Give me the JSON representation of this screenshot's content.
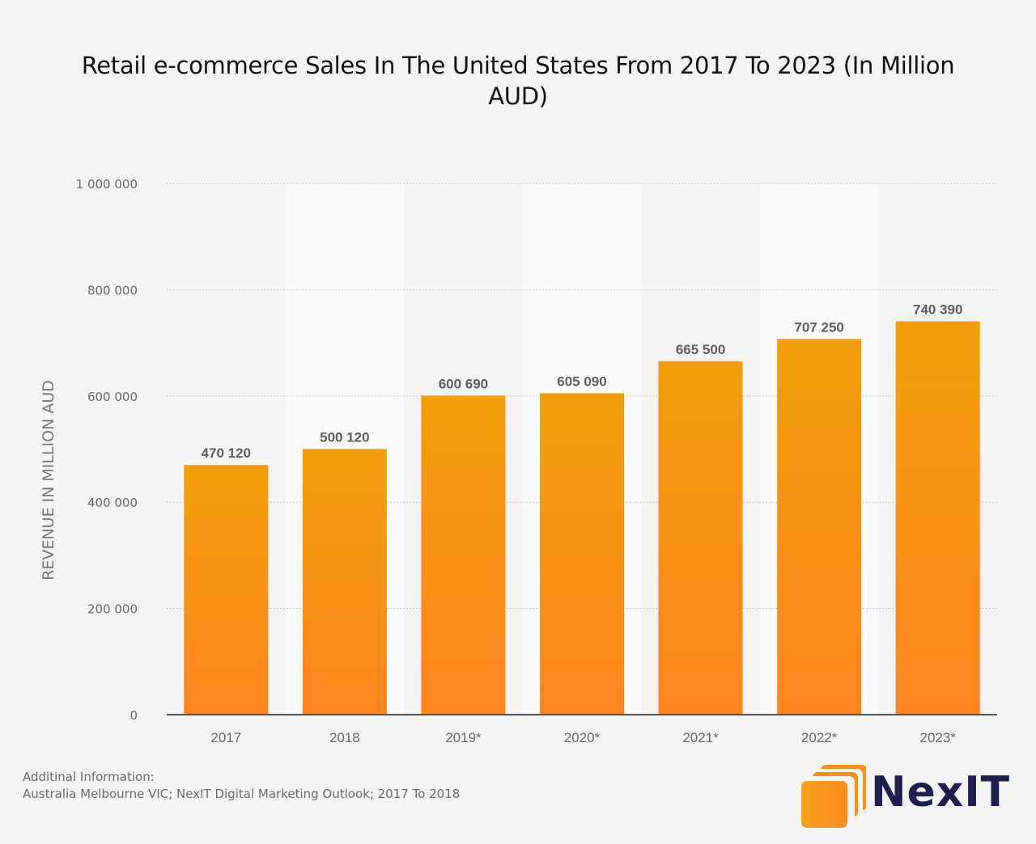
{
  "chart_data": {
    "type": "bar",
    "title": "Retail e-commerce Sales In The United States From 2017 To 2023 (In Million AUD)",
    "xlabel": "",
    "ylabel": "REVENUE IN MILLION AUD",
    "categories": [
      "2017",
      "2018",
      "2019*",
      "2020*",
      "2021*",
      "2022*",
      "2023*"
    ],
    "values": [
      470120,
      500120,
      600690,
      605090,
      665500,
      707250,
      740390
    ],
    "value_labels": [
      "470 120",
      "500 120",
      "600 690",
      "605 090",
      "665 500",
      "707 250",
      "740 390"
    ],
    "ylim": [
      0,
      1000000
    ],
    "yticks": [
      0,
      200000,
      400000,
      600000,
      800000,
      1000000
    ],
    "ytick_labels": [
      "0",
      "200 000",
      "400 000",
      "600 000",
      "800 000",
      "1 000 000"
    ],
    "grid": true,
    "bar_color_top": "#f29f0a",
    "bar_color_bottom": "#fd8420"
  },
  "footer": {
    "line1": "Additinal Information:",
    "line2": "Australia Melbourne VIC; NexIT Digital Marketing Outlook; 2017 To 2018"
  },
  "logo": {
    "text": "NexIT",
    "text_color": "#1e1f4d",
    "accent": "#f7931e"
  }
}
